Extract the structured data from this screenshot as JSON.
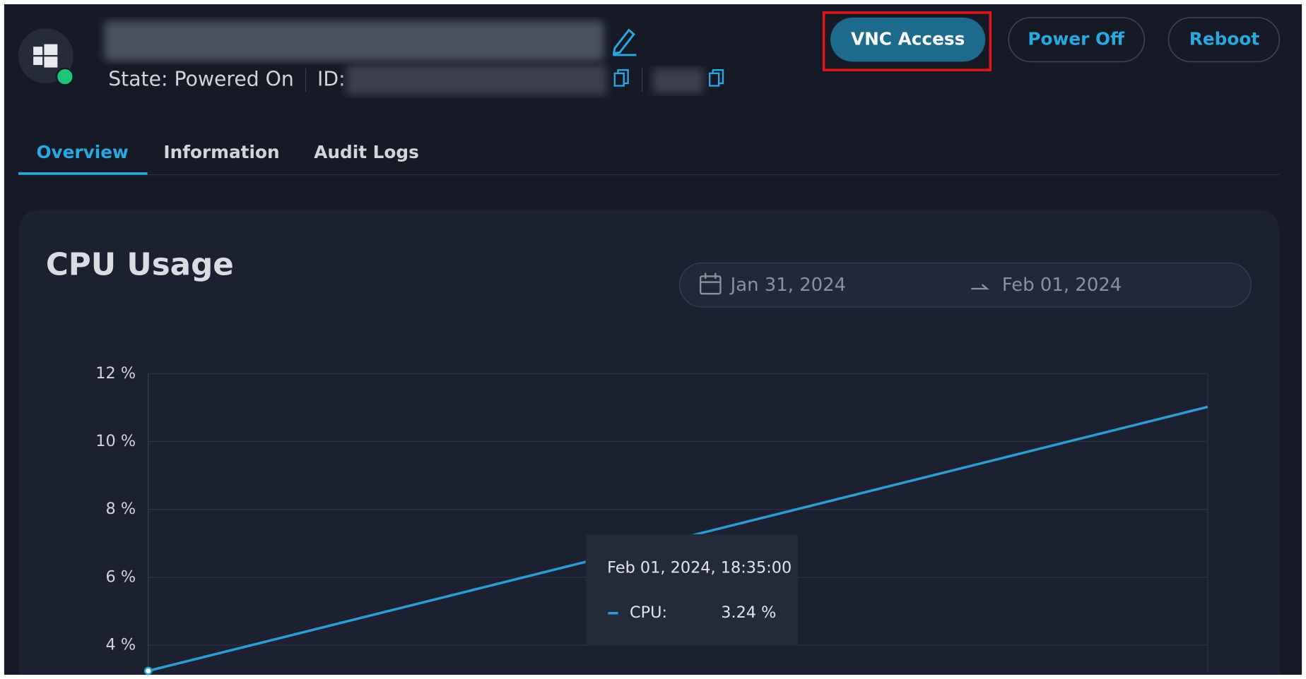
{
  "header": {
    "state": "State: Powered On",
    "id_label": "ID:"
  },
  "buttons": [
    "VNC Access",
    "Power Off",
    "Reboot"
  ],
  "tabs": [
    "Overview",
    "Information",
    "Audit Logs"
  ],
  "date_range": {
    "start": "Jan 31, 2024",
    "end": "Feb 01, 2024"
  },
  "chart_data": {
    "type": "line",
    "title": "CPU Usage",
    "series": [
      {
        "name": "CPU",
        "color": "#2b9fd4",
        "values": [
          3.24,
          11.02
        ]
      }
    ],
    "ylim": [
      3.2,
      12
    ],
    "yticks": [
      {
        "value": 4,
        "label": "4 %"
      },
      {
        "value": 6,
        "label": "6 %"
      },
      {
        "value": 8,
        "label": "8 %"
      },
      {
        "value": 10,
        "label": "10 %"
      },
      {
        "value": 12,
        "label": "12 %"
      }
    ],
    "grid": true
  },
  "tooltip": {
    "title": "Feb 01, 2024, 18:35:00",
    "label": "CPU:",
    "value": "3.24 %"
  }
}
